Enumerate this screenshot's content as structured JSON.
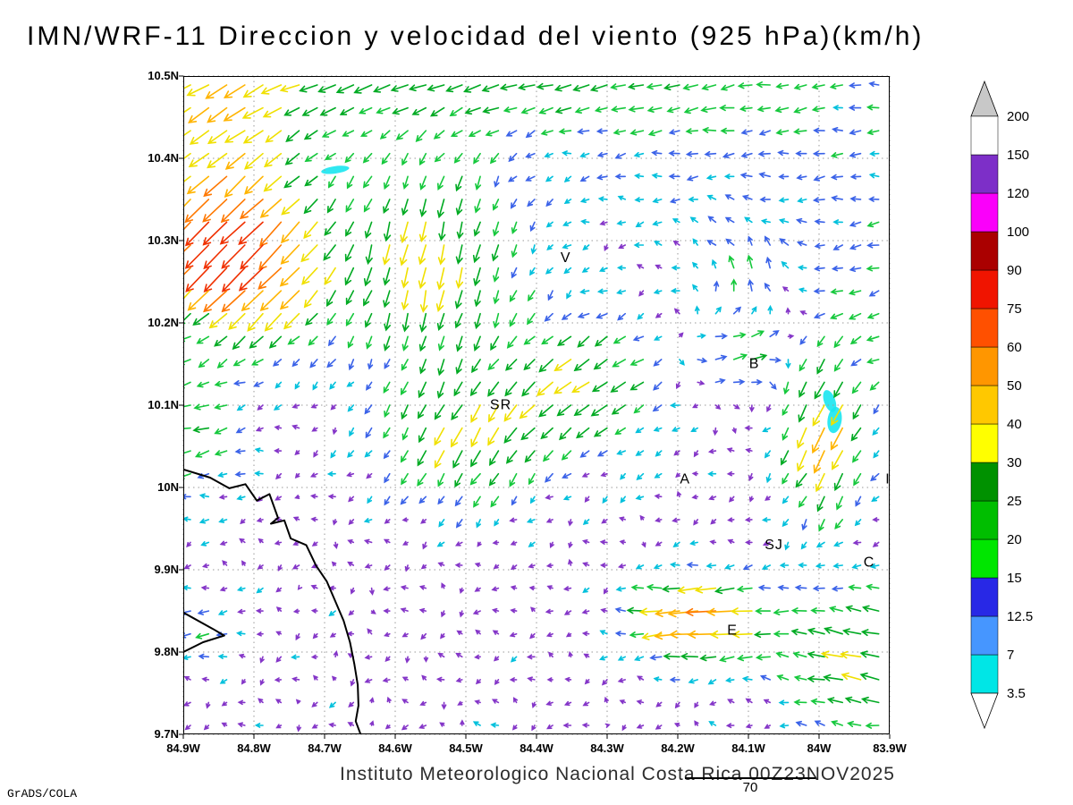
{
  "title": "IMN/WRF-11 Direccion y velocidad del viento (925 hPa)(km/h)",
  "footer": "Instituto Meteorologico Nacional Costa Rica 00Z23NOV2025",
  "credit": "GrADS/COLA",
  "reference_vector": {
    "label": "70"
  },
  "chart_data": {
    "type": "quiver",
    "title": "IMN/WRF-11 Direccion y velocidad del viento (925 hPa)(km/h)",
    "model": "IMN/WRF-11",
    "variable": "Direccion y velocidad del viento",
    "level": "925 hPa",
    "units": "km/h",
    "valid_time": "00Z23NOV2025",
    "x_axis": {
      "ticks": [
        "84.9W",
        "84.8W",
        "84.7W",
        "84.6W",
        "84.5W",
        "84.4W",
        "84.3W",
        "84.2W",
        "84.1W",
        "84W",
        "83.9W"
      ],
      "lon_west_range": [
        84.9,
        83.9
      ]
    },
    "y_axis": {
      "ticks": [
        "10.5N",
        "10.4N",
        "10.3N",
        "10.2N",
        "10.1N",
        "10N",
        "9.9N",
        "9.8N",
        "9.7N"
      ],
      "lat_range": [
        9.7,
        10.5
      ]
    },
    "grid": {
      "style": "dotted",
      "interval_deg": 0.1,
      "color": "#9a9a9a"
    },
    "colorbar": {
      "levels": [
        3.5,
        7,
        12.5,
        15,
        20,
        25,
        30,
        40,
        50,
        60,
        75,
        90,
        100,
        120,
        150,
        200
      ],
      "colors_low_to_high": [
        "#00E6E6",
        "#4696FF",
        "#2828E6",
        "#00E600",
        "#00BE00",
        "#009100",
        "#FFFF00",
        "#FFC800",
        "#FF9600",
        "#FF5000",
        "#F01400",
        "#AA0000",
        "#FA00FA",
        "#7D2FC8",
        "#FFFFFF"
      ],
      "under_color": "#FFFFFF",
      "over_color": "#C8C8C8"
    },
    "station_labels": [
      {
        "text": "V",
        "lon_w": 84.366,
        "lat": 10.274
      },
      {
        "text": "B",
        "lon_w": 84.099,
        "lat": 10.145
      },
      {
        "text": "SR",
        "lon_w": 84.466,
        "lat": 10.095
      },
      {
        "text": "A",
        "lon_w": 84.197,
        "lat": 10.005
      },
      {
        "text": "SJ",
        "lon_w": 84.077,
        "lat": 9.925
      },
      {
        "text": "C",
        "lon_w": 83.937,
        "lat": 9.904
      },
      {
        "text": "E",
        "lon_w": 84.13,
        "lat": 9.821
      },
      {
        "text": "I",
        "lon_w": 83.906,
        "lat": 10.005
      }
    ],
    "coastline_lon_lat": [
      [
        84.9,
        10.022
      ],
      [
        84.862,
        10.012
      ],
      [
        84.835,
        9.999
      ],
      [
        84.812,
        10.004
      ],
      [
        84.796,
        9.984
      ],
      [
        84.778,
        9.992
      ],
      [
        84.766,
        9.963
      ],
      [
        84.776,
        9.956
      ],
      [
        84.757,
        9.96
      ],
      [
        84.748,
        9.938
      ],
      [
        84.726,
        9.93
      ],
      [
        84.712,
        9.905
      ],
      [
        84.697,
        9.886
      ],
      [
        84.685,
        9.862
      ],
      [
        84.673,
        9.838
      ],
      [
        84.664,
        9.812
      ],
      [
        84.658,
        9.786
      ],
      [
        84.653,
        9.76
      ],
      [
        84.652,
        9.735
      ],
      [
        84.656,
        9.716
      ],
      [
        84.649,
        9.7
      ]
    ],
    "cape_lon_lat": [
      [
        84.9,
        9.848
      ],
      [
        84.858,
        9.828
      ],
      [
        84.842,
        9.82
      ],
      [
        84.872,
        9.812
      ],
      [
        84.9,
        9.8
      ]
    ],
    "shaded_patches": [
      {
        "lon_w": 83.985,
        "lat": 10.105,
        "rx_deg": 0.008,
        "ry_deg": 0.014,
        "rot": -20,
        "color": "#19E6F0"
      },
      {
        "lon_w": 83.978,
        "lat": 10.082,
        "rx_deg": 0.01,
        "ry_deg": 0.016,
        "rot": 8,
        "color": "#19E6F0"
      },
      {
        "lon_w": 84.685,
        "lat": 10.386,
        "rx_deg": 0.02,
        "ry_deg": 0.0045,
        "rot": -8,
        "color": "#19E6F0"
      }
    ],
    "wind_field_model": {
      "note": "estimated smooth flow features reconstructed from the plotted vectors",
      "base": {
        "u": -2.5,
        "v": -0.5
      },
      "noise": {
        "amp": 2.3,
        "k1": 57,
        "k2": 43,
        "k3": 38,
        "k4": 61,
        "jitter": 1.5
      },
      "grid": {
        "nx": 39,
        "ny": 29
      },
      "features": [
        {
          "lon_w": 84.55,
          "lat": 10.52,
          "sx": 0.5,
          "sy": 0.09,
          "u": -22,
          "v": -6
        },
        {
          "lon_w": 84.85,
          "lat": 10.44,
          "sx": 0.12,
          "sy": 0.12,
          "u": -18,
          "v": -16
        },
        {
          "lon_w": 84.79,
          "lat": 10.28,
          "sx": 0.1,
          "sy": 0.1,
          "u": -34,
          "v": -34
        },
        {
          "lon_w": 84.87,
          "lat": 10.3,
          "sx": 0.07,
          "sy": 0.07,
          "u": -20,
          "v": -24
        },
        {
          "lon_w": 84.55,
          "lat": 10.28,
          "sx": 0.13,
          "sy": 0.13,
          "u": -4,
          "v": -30
        },
        {
          "lon_w": 84.33,
          "lat": 10.13,
          "sx": 0.12,
          "sy": 0.08,
          "u": -20,
          "v": -14
        },
        {
          "lon_w": 84.12,
          "lat": 10.16,
          "sx": 0.08,
          "sy": 0.05,
          "u": 22,
          "v": 3
        },
        {
          "lon_w": 84.1,
          "lat": 10.26,
          "sx": 0.08,
          "sy": 0.07,
          "u": 2,
          "v": 14
        },
        {
          "lon_w": 84.05,
          "lat": 10.4,
          "sx": 0.28,
          "sy": 0.14,
          "u": -8,
          "v": 0
        },
        {
          "lon_w": 83.99,
          "lat": 10.07,
          "sx": 0.06,
          "sy": 0.1,
          "u": -14,
          "v": -34
        },
        {
          "lon_w": 84.16,
          "lat": 9.84,
          "sx": 0.09,
          "sy": 0.05,
          "u": -45,
          "v": -3
        },
        {
          "lon_w": 83.94,
          "lat": 9.79,
          "sx": 0.1,
          "sy": 0.09,
          "u": -26,
          "v": 7
        },
        {
          "lon_w": 84.88,
          "lat": 10.07,
          "sx": 0.07,
          "sy": 0.09,
          "u": -16,
          "v": -4
        },
        {
          "lon_w": 84.5,
          "lat": 10.06,
          "sx": 0.12,
          "sy": 0.08,
          "u": -10,
          "v": -22
        },
        {
          "lon_w": 84.87,
          "lat": 9.83,
          "sx": 0.05,
          "sy": 0.04,
          "u": -12,
          "v": -2
        },
        {
          "lon_w": 83.91,
          "lat": 10.22,
          "sx": 0.1,
          "sy": 0.1,
          "u": -9,
          "v": -3
        }
      ],
      "arrow_speed_colors": [
        {
          "max_kmh": 5.5,
          "color": "#8435C8"
        },
        {
          "max_kmh": 9,
          "color": "#00C0DC"
        },
        {
          "max_kmh": 13,
          "color": "#3A62E8"
        },
        {
          "max_kmh": 19,
          "color": "#15C83C"
        },
        {
          "max_kmh": 27,
          "color": "#00AA22"
        },
        {
          "max_kmh": 36,
          "color": "#F0E000"
        },
        {
          "max_kmh": 46,
          "color": "#FFB400"
        },
        {
          "max_kmh": 56,
          "color": "#FF7800"
        },
        {
          "max_kmh": 9999,
          "color": "#F03000"
        }
      ]
    }
  }
}
